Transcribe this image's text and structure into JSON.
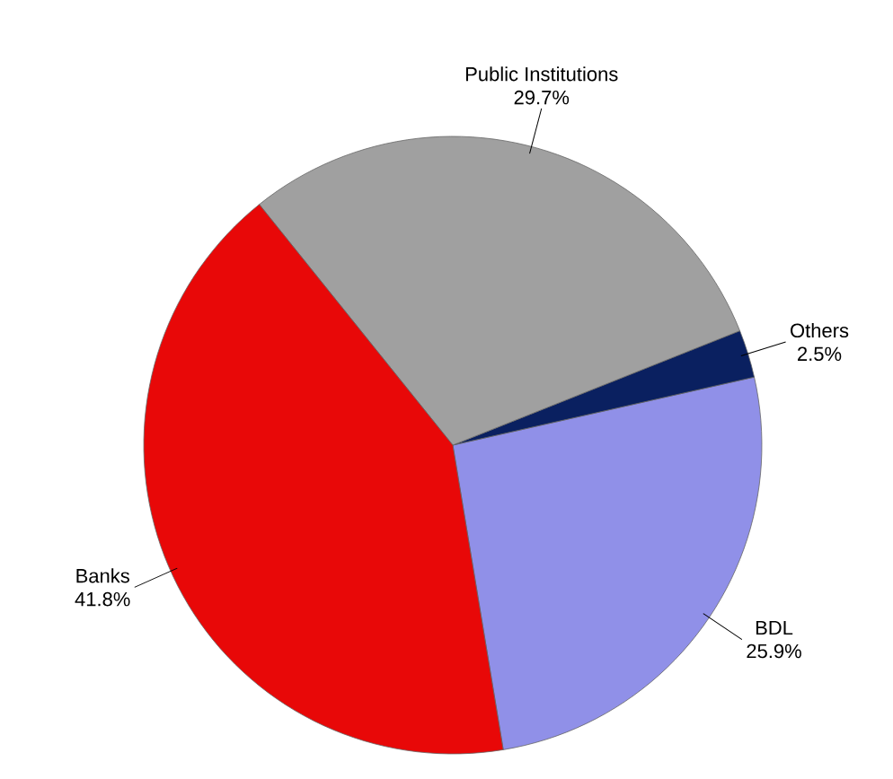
{
  "chart_data": {
    "type": "pie",
    "categories": [
      "BDL",
      "Others",
      "Public Institutions",
      "Banks"
    ],
    "values": [
      25.9,
      2.5,
      29.7,
      41.8
    ],
    "value_labels": [
      "25.9%",
      "2.5%",
      "29.7%",
      "41.8%"
    ],
    "colors": [
      "#9090e8",
      "#0a2060",
      "#a0a0a0",
      "#e80808"
    ]
  }
}
